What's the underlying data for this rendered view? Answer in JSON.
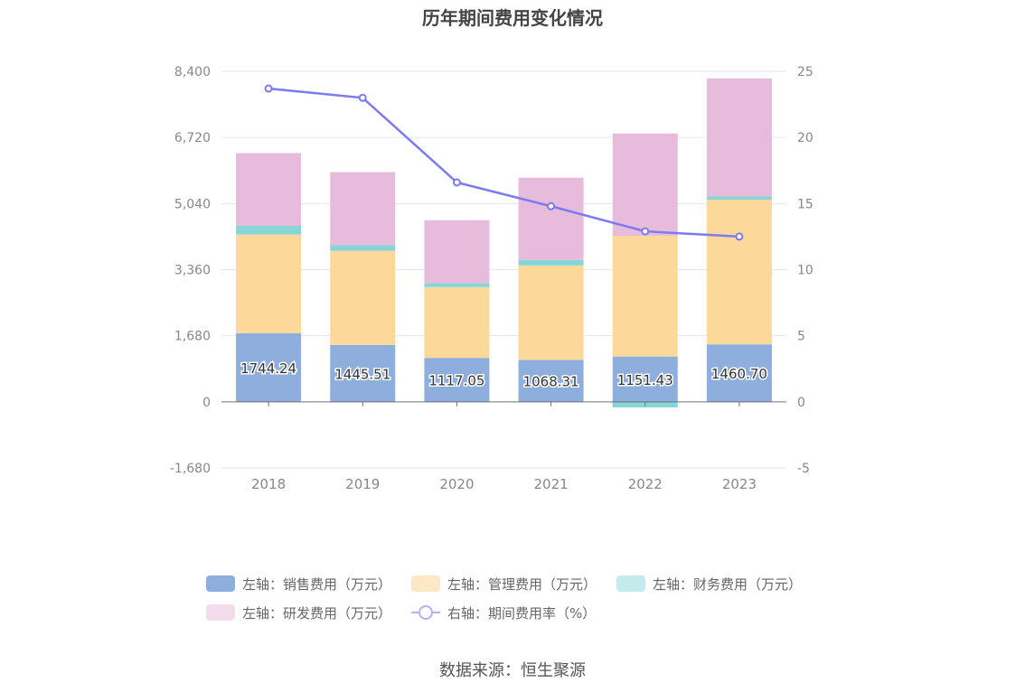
{
  "chart_data": {
    "type": "bar",
    "title": "历年期间费用变化情况",
    "categories": [
      "2018",
      "2019",
      "2020",
      "2021",
      "2022",
      "2023"
    ],
    "left_axis": {
      "min": -1680,
      "max": 8400,
      "ticks": [
        -1680,
        0,
        1680,
        3360,
        5040,
        6720,
        8400
      ],
      "tick_labels": [
        "-1,680",
        "0",
        "1,680",
        "3,360",
        "5,040",
        "6,720",
        "8,400"
      ]
    },
    "right_axis": {
      "min": -5,
      "max": 25,
      "ticks": [
        -5,
        0,
        5,
        10,
        15,
        20,
        25
      ],
      "tick_labels": [
        "-5",
        "0",
        "5",
        "10",
        "15",
        "20",
        "25"
      ]
    },
    "series": [
      {
        "name": "左轴：销售费用（万元）",
        "type": "bar",
        "axis": "left",
        "color": "#8eaedd",
        "values": [
          1744.24,
          1445.51,
          1117.05,
          1068.31,
          1151.43,
          1460.7
        ],
        "labels": [
          "1744.24",
          "1445.51",
          "1117.05",
          "1068.31",
          "1151.43",
          "1460.70"
        ]
      },
      {
        "name": "左轴：管理费用（万元）",
        "type": "bar",
        "axis": "left",
        "color": "#fdd89b",
        "values": [
          2510,
          2395,
          1800,
          2400,
          3070,
          3680
        ]
      },
      {
        "name": "左轴：财务费用（万元）",
        "type": "bar",
        "axis": "left",
        "color": "#86d6d8",
        "values": [
          220,
          140,
          100,
          140,
          -140,
          80
        ]
      },
      {
        "name": "左轴：研发费用（万元）",
        "type": "bar",
        "axis": "left",
        "color": "#e7bbdc",
        "values": [
          1850,
          1860,
          1600,
          2090,
          2600,
          3000
        ]
      },
      {
        "name": "右轴：期间费用率（%）",
        "type": "line",
        "axis": "right",
        "color": "#7b7bef",
        "values": [
          23.7,
          23.0,
          16.6,
          14.8,
          12.9,
          12.5
        ]
      }
    ],
    "legend_position": "bottom",
    "grid": true
  },
  "source": "数据来源：恒生聚源"
}
